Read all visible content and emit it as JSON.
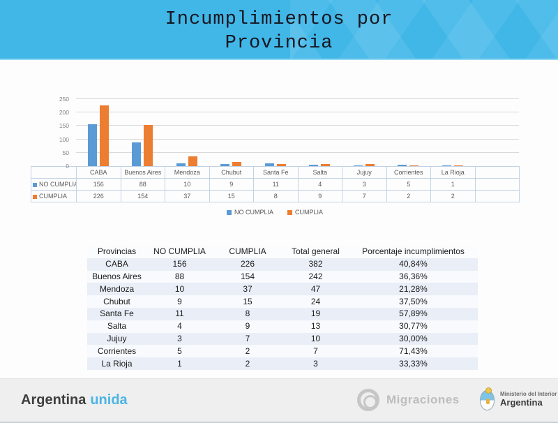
{
  "slide_title": {
    "line1": "Incumplimientos por",
    "line2": "Provincia"
  },
  "chart_data": {
    "type": "bar",
    "title": "",
    "categories": [
      "CABA",
      "Buenos Aires",
      "Mendoza",
      "Chubut",
      "Santa Fe",
      "Salta",
      "Jujuy",
      "Corrientes",
      "La Rioja"
    ],
    "series": [
      {
        "name": "NO CUMPLIA",
        "color": "#5B9BD5",
        "values": [
          156,
          88,
          10,
          9,
          11,
          4,
          3,
          5,
          1
        ]
      },
      {
        "name": "CUMPLIA",
        "color": "#ED7D31",
        "values": [
          226,
          154,
          37,
          15,
          8,
          9,
          7,
          2,
          2
        ]
      }
    ],
    "ylim": [
      0,
      250
    ],
    "yticks": [
      0,
      50,
      100,
      150,
      200,
      250
    ],
    "grid": true,
    "legend_position": "bottom",
    "data_table_attached": true,
    "blank_trailing_columns": 1
  },
  "summary_table": {
    "headers": [
      "Provincias",
      "NO CUMPLIA",
      "CUMPLIA",
      "Total general",
      "Porcentaje incumplimientos"
    ],
    "rows": [
      [
        "CABA",
        "156",
        "226",
        "382",
        "40,84%"
      ],
      [
        "Buenos Aires",
        "88",
        "154",
        "242",
        "36,36%"
      ],
      [
        "Mendoza",
        "10",
        "37",
        "47",
        "21,28%"
      ],
      [
        "Chubut",
        "9",
        "15",
        "24",
        "37,50%"
      ],
      [
        "Santa Fe",
        "11",
        "8",
        "19",
        "57,89%"
      ],
      [
        "Salta",
        "4",
        "9",
        "13",
        "30,77%"
      ],
      [
        "Jujuy",
        "3",
        "7",
        "10",
        "30,00%"
      ],
      [
        "Corrientes",
        "5",
        "2",
        "7",
        "71,43%"
      ],
      [
        "La Rioja",
        "1",
        "2",
        "3",
        "33,33%"
      ]
    ]
  },
  "footer": {
    "brand_word1": "Argentina",
    "brand_word2": "unida",
    "migraciones_label": "Migraciones",
    "ministry_line1": "Ministerio del Interior",
    "ministry_line2": "Argentina"
  },
  "colors": {
    "header_blue": "#41B7E8",
    "brand_light_blue": "#4CB4E4",
    "series_no_cumplia": "#5B9BD5",
    "series_cumplia": "#ED7D31",
    "footer_gray": "#EFEFEF"
  }
}
